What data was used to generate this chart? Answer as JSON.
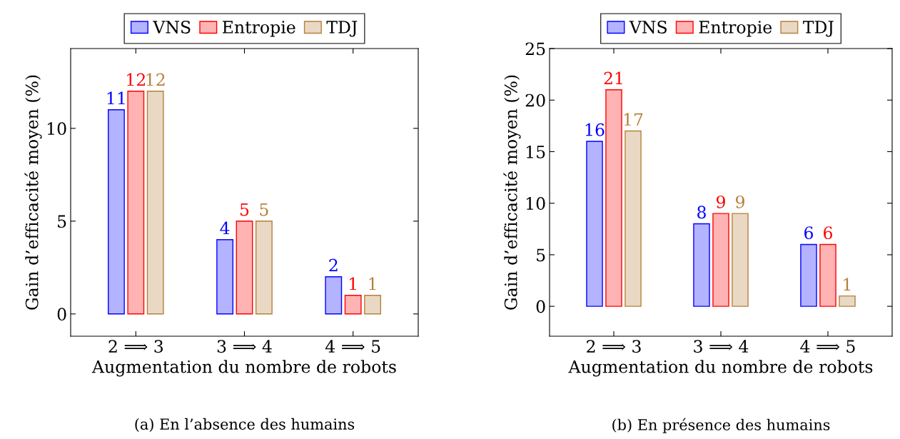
{
  "chart_data": [
    {
      "type": "bar",
      "xlabel": "Augmentation du nombre de robots",
      "ylabel": "Gain d’efficacité moyen (%)",
      "categories": [
        "2 ⟹ 3",
        "3 ⟹ 4",
        "4 ⟹ 5"
      ],
      "series": [
        {
          "name": "VNS",
          "color": "#b3b3ff",
          "values": [
            11,
            4,
            2
          ]
        },
        {
          "name": "Entropie",
          "color": "#ffb3b3",
          "values": [
            12,
            5,
            1
          ]
        },
        {
          "name": "TDJ",
          "color": "#e9d9c4",
          "values": [
            12,
            5,
            1
          ]
        }
      ],
      "ylim": [
        -1.2,
        14.3
      ],
      "yticks": [
        0,
        5,
        10
      ],
      "data_labels": true,
      "legend": "top",
      "grid": false,
      "annotations": [
        "(a) En l’absence des humains"
      ]
    },
    {
      "type": "bar",
      "xlabel": "Augmentation du nombre de robots",
      "ylabel": "Gain d’efficacité moyen (%)",
      "categories": [
        "2 ⟹ 3",
        "3 ⟹ 4",
        "4 ⟹ 5"
      ],
      "series": [
        {
          "name": "VNS",
          "color": "#b3b3ff",
          "values": [
            16,
            8,
            6
          ]
        },
        {
          "name": "Entropie",
          "color": "#ffb3b3",
          "values": [
            21,
            9,
            6
          ]
        },
        {
          "name": "TDJ",
          "color": "#e9d9c4",
          "values": [
            17,
            9,
            1
          ]
        }
      ],
      "ylim": [
        -2.9,
        25
      ],
      "yticks": [
        0,
        5,
        10,
        15,
        20,
        25
      ],
      "data_labels": true,
      "legend": "top",
      "grid": false,
      "annotations": [
        "(b) En présence des humains"
      ]
    }
  ]
}
